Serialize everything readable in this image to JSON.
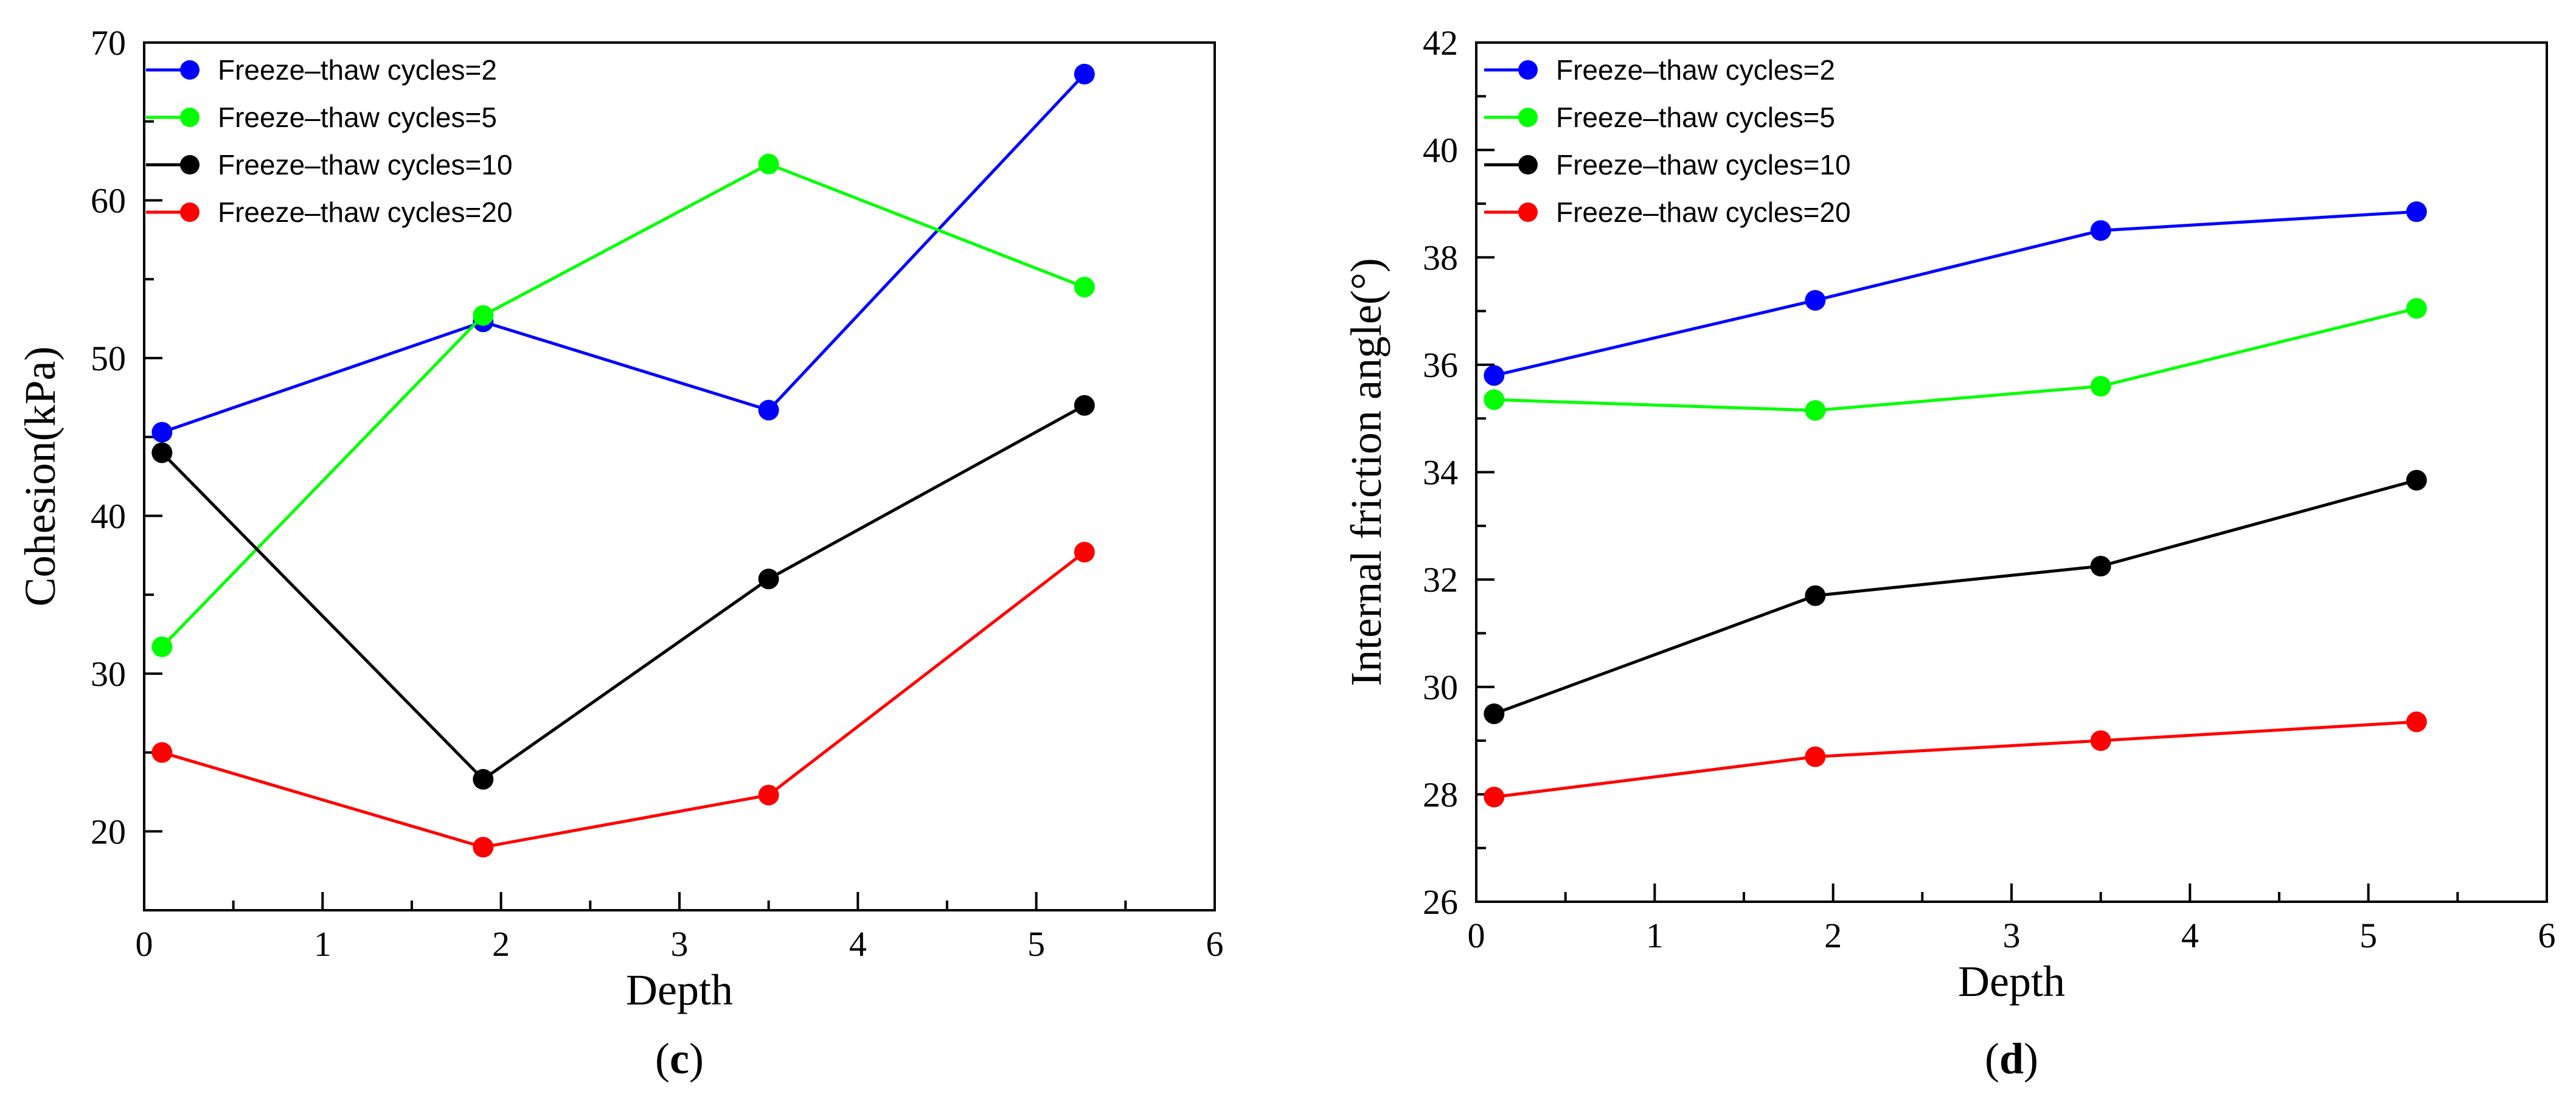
{
  "chart_data": [
    {
      "type": "line",
      "panel_label": "c",
      "title": "",
      "xlabel": "Depth",
      "ylabel": "Cohesion(kPa)",
      "xlim": [
        0,
        6
      ],
      "ylim": [
        15,
        70
      ],
      "x_ticks": [
        0,
        1,
        2,
        3,
        4,
        5,
        6
      ],
      "y_ticks": [
        20,
        30,
        40,
        50,
        60,
        70
      ],
      "x_minor_ticks": [
        0.5,
        1.5,
        2.5,
        3.5,
        4.5,
        5.5
      ],
      "y_minor_ticks": [
        25,
        35,
        45,
        55,
        65
      ],
      "grid": false,
      "legend_position": "top-left",
      "x": [
        0.1,
        1.9,
        3.5,
        5.27
      ],
      "series": [
        {
          "name": "Freeze–thaw cycles=2",
          "color": "#0000ff",
          "values": [
            45.3,
            52.3,
            46.7,
            68.0
          ]
        },
        {
          "name": "Freeze–thaw cycles=5",
          "color": "#00ff00",
          "values": [
            31.7,
            52.7,
            62.3,
            54.5
          ]
        },
        {
          "name": "Freeze–thaw cycles=10",
          "color": "#000000",
          "values": [
            44.0,
            23.3,
            36.0,
            47.0
          ]
        },
        {
          "name": "Freeze–thaw cycles=20",
          "color": "#ff0000",
          "values": [
            25.0,
            19.0,
            22.3,
            37.7
          ]
        }
      ]
    },
    {
      "type": "line",
      "panel_label": "d",
      "title": "",
      "xlabel": "Depth",
      "ylabel": "Internal friction angle(°)",
      "xlim": [
        0,
        6
      ],
      "ylim": [
        26,
        42
      ],
      "x_ticks": [
        0,
        1,
        2,
        3,
        4,
        5,
        6
      ],
      "y_ticks": [
        26,
        28,
        30,
        32,
        34,
        36,
        38,
        40,
        42
      ],
      "x_minor_ticks": [
        0.5,
        1.5,
        2.5,
        3.5,
        4.5,
        5.5
      ],
      "y_minor_ticks": [
        27,
        29,
        31,
        33,
        35,
        37,
        39,
        41
      ],
      "grid": false,
      "legend_position": "top-left",
      "x": [
        0.1,
        1.9,
        3.5,
        5.27
      ],
      "series": [
        {
          "name": "Freeze–thaw cycles=2",
          "color": "#0000ff",
          "values": [
            35.8,
            37.2,
            38.5,
            38.85
          ]
        },
        {
          "name": "Freeze–thaw cycles=5",
          "color": "#00ff00",
          "values": [
            35.35,
            35.15,
            35.6,
            37.05
          ]
        },
        {
          "name": "Freeze–thaw cycles=10",
          "color": "#000000",
          "values": [
            29.5,
            31.7,
            32.25,
            33.85
          ]
        },
        {
          "name": "Freeze–thaw cycles=20",
          "color": "#ff0000",
          "values": [
            27.95,
            28.7,
            29.0,
            29.35
          ]
        }
      ]
    }
  ]
}
